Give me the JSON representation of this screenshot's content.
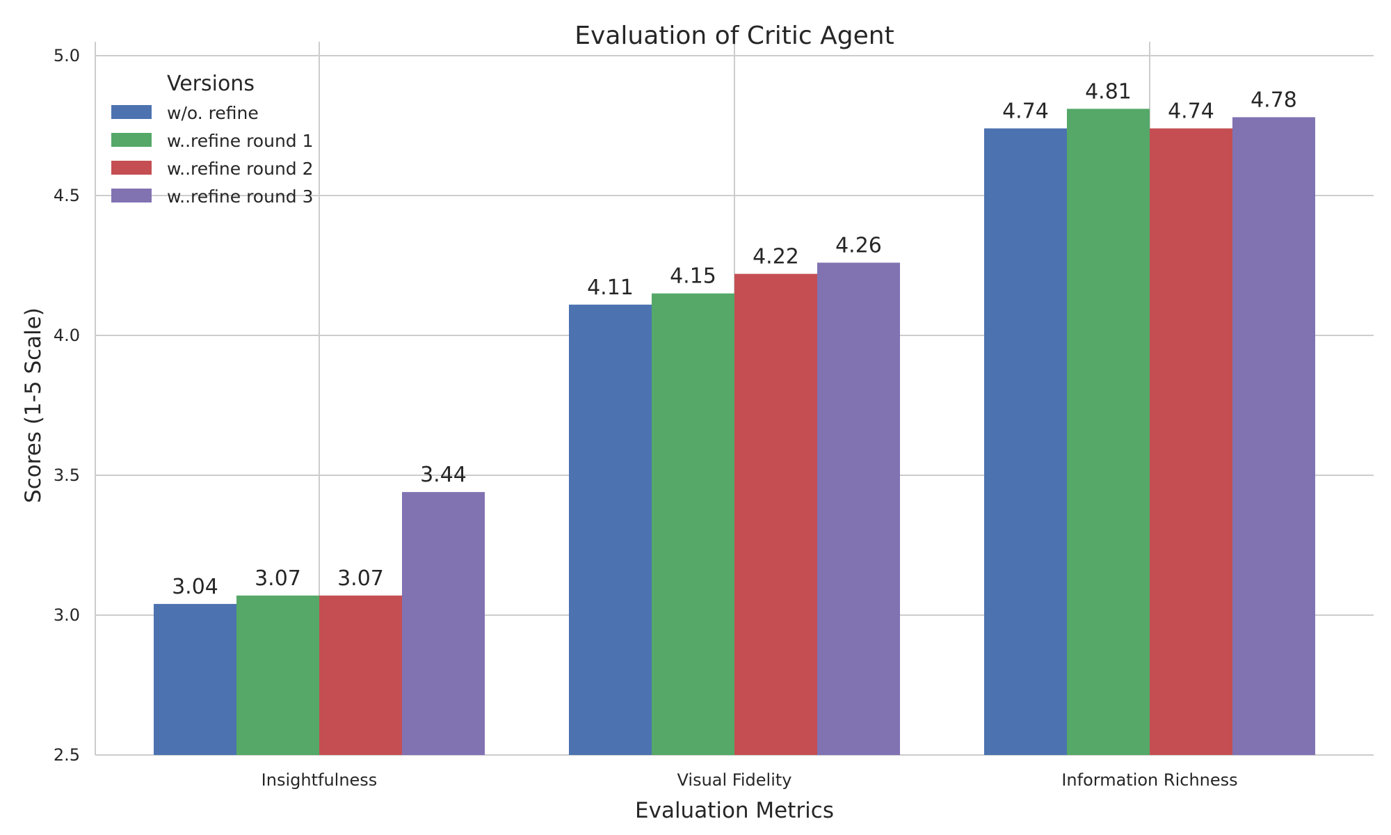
{
  "chart_data": {
    "type": "bar",
    "title": "Evaluation of Critic Agent",
    "xlabel": "Evaluation Metrics",
    "ylabel": "Scores (1-5 Scale)",
    "categories": [
      "Insightfulness",
      "Visual Fidelity",
      "Information Richness"
    ],
    "ylim": [
      2.5,
      5.0
    ],
    "yticks": [
      "2.5",
      "3.0",
      "3.5",
      "4.0",
      "4.5",
      "5.0"
    ],
    "grid": true,
    "legend": {
      "title": "Versions",
      "placement": "top-left"
    },
    "series": [
      {
        "name": "w/o. refine",
        "color": "#4c72b0",
        "values": [
          3.04,
          4.11,
          4.74
        ]
      },
      {
        "name": "w..refine round 1",
        "color": "#55a868",
        "values": [
          3.07,
          4.15,
          4.81
        ]
      },
      {
        "name": "w..refine round 2",
        "color": "#c44e52",
        "values": [
          3.07,
          4.22,
          4.74
        ]
      },
      {
        "name": "w..refine round 3",
        "color": "#8172b2",
        "values": [
          3.44,
          4.26,
          4.78
        ]
      }
    ],
    "data_labels": [
      [
        "3.04",
        "4.11",
        "4.74"
      ],
      [
        "3.07",
        "4.15",
        "4.81"
      ],
      [
        "3.07",
        "4.22",
        "4.74"
      ],
      [
        "3.44",
        "4.26",
        "4.78"
      ]
    ]
  }
}
